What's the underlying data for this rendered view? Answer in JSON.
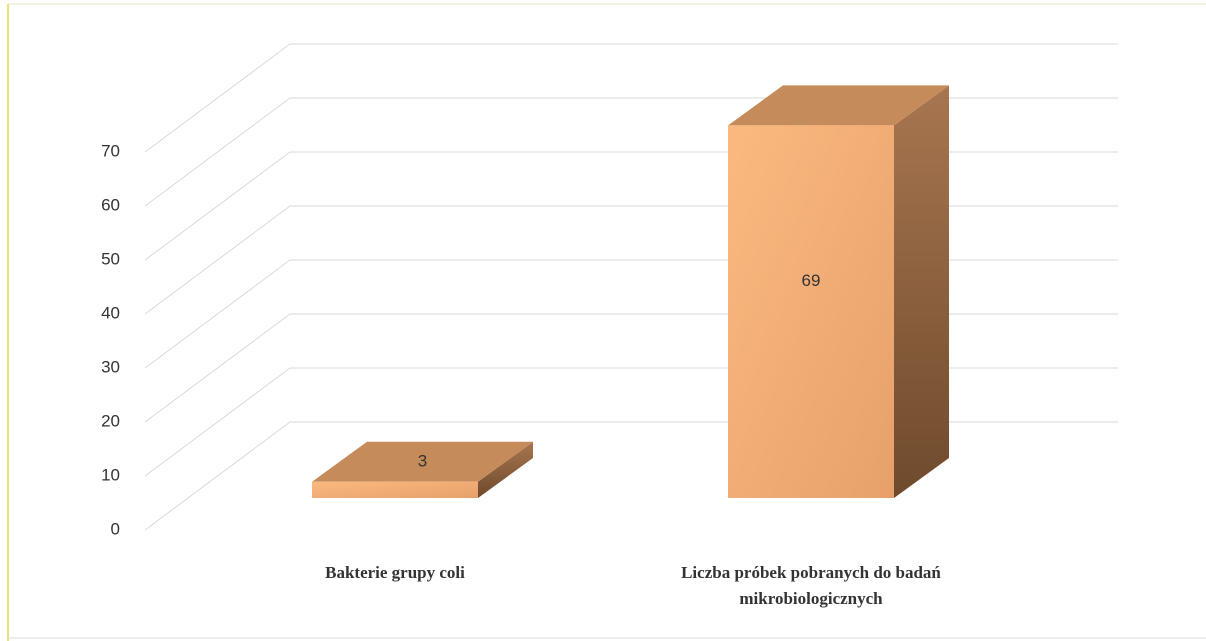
{
  "chart_data": {
    "type": "bar3d",
    "categories": [
      "Bakterie grupy coli",
      "Liczba próbek pobranych do badań mikrobiologicznych"
    ],
    "values": [
      3,
      69
    ],
    "color": "#f2a96e",
    "ylim": [
      0,
      70
    ],
    "yticks": [
      0,
      10,
      20,
      30,
      40,
      50,
      60,
      70
    ],
    "grid": true
  }
}
